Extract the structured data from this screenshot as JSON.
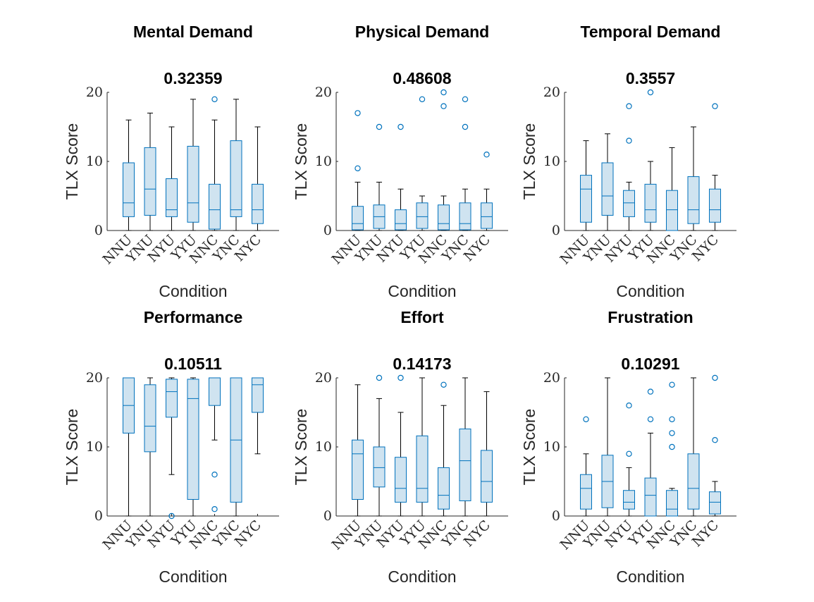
{
  "colors": {
    "box_fill": "#cfe3f0",
    "box_edge": "#0072bd",
    "whisker": "#000000",
    "axis": "#262626"
  },
  "chart_data": [
    {
      "type": "box",
      "title": "Mental Demand",
      "subtitle": "0.32359",
      "xlabel": "Condition",
      "ylabel": "TLX Score",
      "categories": [
        "NNU",
        "YNU",
        "NYU",
        "YYU",
        "NNC",
        "YNC",
        "NYC"
      ],
      "ylim": [
        0,
        20
      ],
      "yticks": [
        0,
        10,
        20
      ],
      "boxes": [
        {
          "min": 0,
          "q1": 2,
          "median": 4,
          "q3": 9.8,
          "max": 16,
          "outliers": []
        },
        {
          "min": 0,
          "q1": 2.2,
          "median": 6,
          "q3": 12,
          "max": 17,
          "outliers": []
        },
        {
          "min": 0,
          "q1": 2,
          "median": 3,
          "q3": 7.5,
          "max": 15,
          "outliers": []
        },
        {
          "min": 0,
          "q1": 1.2,
          "median": 4,
          "q3": 12.2,
          "max": 19,
          "outliers": []
        },
        {
          "min": 0,
          "q1": 0.2,
          "median": 3,
          "q3": 6.7,
          "max": 16,
          "outliers": [
            19
          ]
        },
        {
          "min": 0,
          "q1": 2,
          "median": 3,
          "q3": 13,
          "max": 19,
          "outliers": []
        },
        {
          "min": 0,
          "q1": 1,
          "median": 3,
          "q3": 6.7,
          "max": 15,
          "outliers": []
        }
      ]
    },
    {
      "type": "box",
      "title": "Physical Demand",
      "subtitle": "0.48608",
      "xlabel": "Condition",
      "ylabel": "TLX Score",
      "categories": [
        "NNU",
        "YNU",
        "NYU",
        "YYU",
        "NNC",
        "YNC",
        "NYC"
      ],
      "ylim": [
        0,
        20
      ],
      "yticks": [
        0,
        10,
        20
      ],
      "boxes": [
        {
          "min": 0,
          "q1": 0.1,
          "median": 1,
          "q3": 3.5,
          "max": 7,
          "outliers": [
            9,
            17
          ]
        },
        {
          "min": 0,
          "q1": 0.3,
          "median": 2,
          "q3": 3.7,
          "max": 7,
          "outliers": [
            15
          ]
        },
        {
          "min": 0,
          "q1": 0.1,
          "median": 1,
          "q3": 3,
          "max": 6,
          "outliers": [
            15
          ]
        },
        {
          "min": 0,
          "q1": 0.3,
          "median": 2,
          "q3": 4,
          "max": 5,
          "outliers": [
            19
          ]
        },
        {
          "min": 0,
          "q1": 0.1,
          "median": 1,
          "q3": 3.7,
          "max": 5,
          "outliers": [
            18,
            20
          ]
        },
        {
          "min": 0,
          "q1": 0.1,
          "median": 1,
          "q3": 4,
          "max": 6,
          "outliers": [
            15,
            19
          ]
        },
        {
          "min": 0,
          "q1": 0.3,
          "median": 2,
          "q3": 4,
          "max": 6,
          "outliers": [
            11
          ]
        }
      ]
    },
    {
      "type": "box",
      "title": "Temporal Demand",
      "subtitle": "0.3557",
      "xlabel": "Condition",
      "ylabel": "TLX Score",
      "categories": [
        "NNU",
        "YNU",
        "NYU",
        "YYU",
        "NNC",
        "YNC",
        "NYC"
      ],
      "ylim": [
        0,
        20
      ],
      "yticks": [
        0,
        10,
        20
      ],
      "boxes": [
        {
          "min": 0,
          "q1": 1.2,
          "median": 6,
          "q3": 8,
          "max": 13,
          "outliers": []
        },
        {
          "min": 0,
          "q1": 2.2,
          "median": 5,
          "q3": 9.8,
          "max": 14,
          "outliers": []
        },
        {
          "min": 0,
          "q1": 2,
          "median": 4,
          "q3": 5.8,
          "max": 7,
          "outliers": [
            13,
            18
          ]
        },
        {
          "min": 0,
          "q1": 1.2,
          "median": 3,
          "q3": 6.7,
          "max": 10,
          "outliers": [
            20
          ]
        },
        {
          "min": 0,
          "q1": 0,
          "median": 3,
          "q3": 5.8,
          "max": 12,
          "outliers": []
        },
        {
          "min": 0,
          "q1": 1,
          "median": 3,
          "q3": 7.8,
          "max": 15,
          "outliers": []
        },
        {
          "min": 0,
          "q1": 1.2,
          "median": 3,
          "q3": 6,
          "max": 8,
          "outliers": [
            18
          ]
        }
      ]
    },
    {
      "type": "box",
      "title": "Performance",
      "subtitle": "0.10511",
      "xlabel": "Condition",
      "ylabel": "TLX Score",
      "categories": [
        "NNU",
        "YNU",
        "NYU",
        "YYU",
        "NNC",
        "YNC",
        "NYC"
      ],
      "ylim": [
        0,
        20
      ],
      "yticks": [
        0,
        10,
        20
      ],
      "boxes": [
        {
          "min": 0,
          "q1": 12,
          "median": 16,
          "q3": 20,
          "max": 20,
          "outliers": []
        },
        {
          "min": 0,
          "q1": 9.3,
          "median": 13,
          "q3": 19,
          "max": 20,
          "outliers": []
        },
        {
          "min": 6,
          "q1": 14.3,
          "median": 18,
          "q3": 19.8,
          "max": 20,
          "outliers": [
            0
          ]
        },
        {
          "min": 0,
          "q1": 2.4,
          "median": 17,
          "q3": 19.8,
          "max": 20,
          "outliers": []
        },
        {
          "min": 11,
          "q1": 16,
          "median": 20,
          "q3": 20,
          "max": 20,
          "outliers": [
            1,
            6
          ]
        },
        {
          "min": 0,
          "q1": 2,
          "median": 11,
          "q3": 20,
          "max": 20,
          "outliers": []
        },
        {
          "min": 9,
          "q1": 15,
          "median": 19,
          "q3": 20,
          "max": 20,
          "outliers": []
        }
      ]
    },
    {
      "type": "box",
      "title": "Effort",
      "subtitle": "0.14173",
      "xlabel": "Condition",
      "ylabel": "TLX Score",
      "categories": [
        "NNU",
        "YNU",
        "NYU",
        "YYU",
        "NNC",
        "YNC",
        "NYC"
      ],
      "ylim": [
        0,
        20
      ],
      "yticks": [
        0,
        10,
        20
      ],
      "boxes": [
        {
          "min": 0,
          "q1": 2.4,
          "median": 9,
          "q3": 11,
          "max": 19,
          "outliers": []
        },
        {
          "min": 0,
          "q1": 4.2,
          "median": 7,
          "q3": 10,
          "max": 17,
          "outliers": [
            20
          ]
        },
        {
          "min": 0,
          "q1": 2,
          "median": 4,
          "q3": 8.5,
          "max": 15,
          "outliers": [
            20
          ]
        },
        {
          "min": 0,
          "q1": 2,
          "median": 4,
          "q3": 11.6,
          "max": 20,
          "outliers": []
        },
        {
          "min": 0,
          "q1": 1,
          "median": 3,
          "q3": 7,
          "max": 16,
          "outliers": [
            19
          ]
        },
        {
          "min": 0,
          "q1": 2.2,
          "median": 8,
          "q3": 12.6,
          "max": 20,
          "outliers": []
        },
        {
          "min": 0,
          "q1": 2,
          "median": 5,
          "q3": 9.5,
          "max": 18,
          "outliers": []
        }
      ]
    },
    {
      "type": "box",
      "title": "Frustration",
      "subtitle": "0.10291",
      "xlabel": "Condition",
      "ylabel": "TLX Score",
      "categories": [
        "NNU",
        "YNU",
        "NYU",
        "YYU",
        "NNC",
        "YNC",
        "NYC"
      ],
      "ylim": [
        0,
        20
      ],
      "yticks": [
        0,
        10,
        20
      ],
      "boxes": [
        {
          "min": 0,
          "q1": 1,
          "median": 4,
          "q3": 6,
          "max": 9,
          "outliers": [
            14
          ]
        },
        {
          "min": 0,
          "q1": 1.2,
          "median": 5,
          "q3": 8.8,
          "max": 20,
          "outliers": []
        },
        {
          "min": 0,
          "q1": 1,
          "median": 2,
          "q3": 3.7,
          "max": 7,
          "outliers": [
            9,
            16
          ]
        },
        {
          "min": 0,
          "q1": 0,
          "median": 3,
          "q3": 5.5,
          "max": 12,
          "outliers": [
            14,
            18
          ]
        },
        {
          "min": 0,
          "q1": 0,
          "median": 1,
          "q3": 3.7,
          "max": 4,
          "outliers": [
            10,
            12,
            14,
            19
          ]
        },
        {
          "min": 0,
          "q1": 1,
          "median": 4,
          "q3": 9,
          "max": 20,
          "outliers": []
        },
        {
          "min": 0,
          "q1": 0.3,
          "median": 2,
          "q3": 3.5,
          "max": 5,
          "outliers": [
            11,
            20
          ]
        }
      ]
    }
  ]
}
